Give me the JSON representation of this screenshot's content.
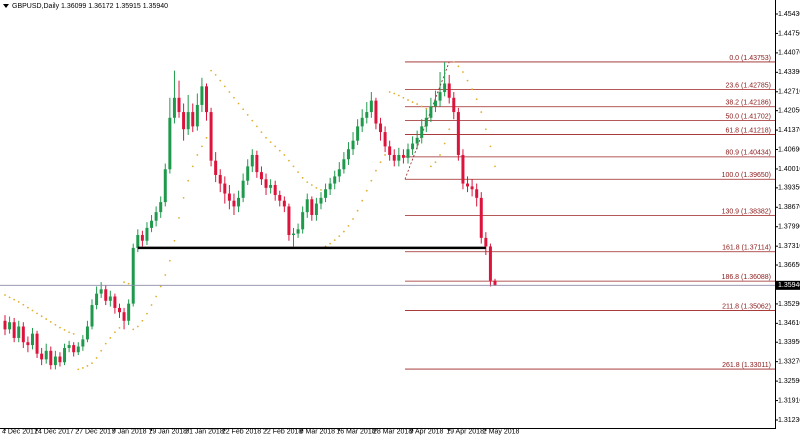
{
  "chart_data": {
    "type": "candlestick",
    "header": "GBPUSD,Daily  1.36099 1.36172 1.35915 1.35940",
    "up_color": "#1f9a4c",
    "down_color": "#dc143c",
    "sar_color": "#e0b030",
    "ylim": [
      1.3095,
      1.4592
    ],
    "yticks": [
      {
        "value": 1.4543,
        "label": "1.45430"
      },
      {
        "value": 1.4475,
        "label": "1.44750"
      },
      {
        "value": 1.4407,
        "label": "1.44070"
      },
      {
        "value": 1.4339,
        "label": "1.43390"
      },
      {
        "value": 1.4271,
        "label": "1.42710"
      },
      {
        "value": 1.4205,
        "label": "1.42050"
      },
      {
        "value": 1.4137,
        "label": "1.41370"
      },
      {
        "value": 1.4069,
        "label": "1.40690"
      },
      {
        "value": 1.4001,
        "label": "1.40010"
      },
      {
        "value": 1.3935,
        "label": "1.39350"
      },
      {
        "value": 1.3867,
        "label": "1.38670"
      },
      {
        "value": 1.3799,
        "label": "1.37990"
      },
      {
        "value": 1.3731,
        "label": "1.37310"
      },
      {
        "value": 1.3665,
        "label": "1.36650"
      },
      {
        "value": 1.3529,
        "label": "1.35290"
      },
      {
        "value": 1.3461,
        "label": "1.34610"
      },
      {
        "value": 1.3395,
        "label": "1.33950"
      },
      {
        "value": 1.3327,
        "label": "1.33270"
      },
      {
        "value": 1.3259,
        "label": "1.32590"
      },
      {
        "value": 1.3191,
        "label": "1.31910"
      },
      {
        "value": 1.3123,
        "label": "1.31230"
      }
    ],
    "categories": [
      "4 Dec 2017",
      null,
      null,
      null,
      null,
      null,
      null,
      "14 Dec 2017",
      null,
      null,
      null,
      null,
      null,
      null,
      null,
      null,
      "27 Dec 2017",
      null,
      null,
      null,
      null,
      null,
      null,
      null,
      "9 Jan 2018",
      null,
      null,
      null,
      null,
      null,
      null,
      null,
      "19 Jan 2018",
      null,
      null,
      null,
      null,
      null,
      null,
      null,
      "31 Jan 2018",
      null,
      null,
      null,
      null,
      null,
      null,
      null,
      "12 Feb 2018",
      null,
      null,
      null,
      null,
      null,
      null,
      null,
      null,
      "22 Feb 2018",
      null,
      null,
      null,
      null,
      null,
      null,
      null,
      "6 Mar 2018",
      null,
      null,
      null,
      null,
      null,
      null,
      null,
      "16 Mar 2018",
      null,
      null,
      null,
      null,
      null,
      null,
      null,
      "28 Mar 2018",
      null,
      null,
      null,
      null,
      null,
      null,
      null,
      "9 Apr 2018",
      null,
      null,
      null,
      null,
      null,
      null,
      null,
      "19 Apr 2018",
      null,
      null,
      null,
      null,
      null,
      null,
      null,
      "1 May 2018",
      null,
      null
    ],
    "open": [
      1.347,
      1.344,
      1.3465,
      1.341,
      1.345,
      1.3395,
      1.3385,
      1.3425,
      1.3355,
      1.3335,
      1.3365,
      1.3315,
      1.3345,
      1.3325,
      1.3375,
      1.3385,
      1.336,
      1.338,
      1.3405,
      1.345,
      1.3525,
      1.3565,
      1.358,
      1.354,
      1.3555,
      1.3515,
      1.35,
      1.347,
      1.353,
      1.3725,
      1.377,
      1.375,
      1.3795,
      1.382,
      1.385,
      1.3885,
      1.4,
      1.418,
      1.425,
      1.42,
      1.414,
      1.42,
      1.415,
      1.4225,
      1.429,
      1.42,
      1.403,
      1.398,
      1.395,
      1.3915,
      1.389,
      1.387,
      1.39,
      1.396,
      1.401,
      1.405,
      1.399,
      1.3965,
      1.3935,
      1.3945,
      1.391,
      1.389,
      1.387,
      1.377,
      1.3775,
      1.379,
      1.385,
      1.3895,
      1.384,
      1.388,
      1.39,
      1.393,
      1.395,
      1.3975,
      1.4,
      1.4035,
      1.407,
      1.41,
      1.415,
      1.418,
      1.42,
      1.424,
      1.416,
      1.413,
      1.408,
      1.405,
      1.403,
      1.405,
      1.404,
      1.407,
      1.409,
      1.411,
      1.415,
      1.418,
      1.422,
      1.424,
      1.427,
      1.43,
      1.425,
      1.42,
      1.405,
      1.395,
      1.394,
      1.393,
      1.39,
      1.376,
      1.373,
      1.36099
    ],
    "high": [
      1.349,
      1.3485,
      1.348,
      1.347,
      1.3465,
      1.3415,
      1.3445,
      1.3435,
      1.3375,
      1.339,
      1.338,
      1.3365,
      1.336,
      1.339,
      1.34,
      1.3395,
      1.3395,
      1.342,
      1.347,
      1.3545,
      1.359,
      1.3605,
      1.3595,
      1.3575,
      1.3565,
      1.353,
      1.3515,
      1.3545,
      1.374,
      1.379,
      1.3785,
      1.3815,
      1.384,
      1.387,
      1.3905,
      1.402,
      1.425,
      1.4345,
      1.431,
      1.423,
      1.426,
      1.423,
      1.4265,
      1.432,
      1.43,
      1.4215,
      1.406,
      1.4,
      1.3975,
      1.3945,
      1.3915,
      1.3925,
      1.3985,
      1.4035,
      1.407,
      1.4065,
      1.401,
      1.3985,
      1.3965,
      1.396,
      1.3925,
      1.3905,
      1.388,
      1.3795,
      1.381,
      1.387,
      1.3915,
      1.3905,
      1.39,
      1.392,
      1.395,
      1.397,
      1.3995,
      1.4025,
      1.406,
      1.4095,
      1.413,
      1.4175,
      1.421,
      1.4235,
      1.427,
      1.425,
      1.418,
      1.415,
      1.41,
      1.407,
      1.4075,
      1.407,
      1.409,
      1.4115,
      1.4135,
      1.4175,
      1.421,
      1.425,
      1.4275,
      1.434,
      1.4375,
      1.433,
      1.427,
      1.4215,
      1.407,
      1.3975,
      1.3965,
      1.395,
      1.392,
      1.378,
      1.374,
      1.36172
    ],
    "low": [
      1.342,
      1.3425,
      1.3395,
      1.3395,
      1.3375,
      1.336,
      1.337,
      1.334,
      1.3315,
      1.332,
      1.33,
      1.33,
      1.331,
      1.3315,
      1.336,
      1.3345,
      1.335,
      1.3365,
      1.3395,
      1.344,
      1.351,
      1.355,
      1.3525,
      1.352,
      1.3495,
      1.348,
      1.344,
      1.3455,
      1.352,
      1.371,
      1.373,
      1.3735,
      1.378,
      1.38,
      1.383,
      1.387,
      1.3985,
      1.416,
      1.418,
      1.41,
      1.412,
      1.413,
      1.4135,
      1.42,
      1.417,
      1.401,
      1.3955,
      1.392,
      1.388,
      1.386,
      1.384,
      1.385,
      1.3885,
      1.3945,
      1.399,
      1.397,
      1.3945,
      1.391,
      1.3915,
      1.389,
      1.387,
      1.385,
      1.375,
      1.373,
      1.376,
      1.3775,
      1.383,
      1.382,
      1.382,
      1.386,
      1.3885,
      1.391,
      1.393,
      1.3955,
      1.3985,
      1.4015,
      1.405,
      1.4085,
      1.413,
      1.416,
      1.418,
      1.414,
      1.41,
      1.406,
      1.403,
      1.401,
      1.401,
      1.402,
      1.402,
      1.405,
      1.407,
      1.409,
      1.413,
      1.4165,
      1.42,
      1.422,
      1.4255,
      1.423,
      1.4175,
      1.403,
      1.393,
      1.392,
      1.3905,
      1.387,
      1.374,
      1.37,
      1.359,
      1.35915
    ],
    "close": [
      1.344,
      1.3465,
      1.341,
      1.345,
      1.3395,
      1.3385,
      1.3425,
      1.3355,
      1.3335,
      1.3365,
      1.3315,
      1.3345,
      1.3325,
      1.3375,
      1.3385,
      1.336,
      1.338,
      1.3405,
      1.345,
      1.3525,
      1.3565,
      1.358,
      1.354,
      1.3555,
      1.3515,
      1.35,
      1.347,
      1.353,
      1.3725,
      1.377,
      1.375,
      1.3795,
      1.382,
      1.385,
      1.3885,
      1.4,
      1.418,
      1.425,
      1.42,
      1.414,
      1.42,
      1.415,
      1.4225,
      1.429,
      1.42,
      1.403,
      1.398,
      1.395,
      1.3915,
      1.389,
      1.387,
      1.39,
      1.396,
      1.401,
      1.405,
      1.399,
      1.3965,
      1.3935,
      1.3945,
      1.391,
      1.389,
      1.387,
      1.377,
      1.3775,
      1.379,
      1.385,
      1.3895,
      1.384,
      1.388,
      1.39,
      1.393,
      1.395,
      1.3975,
      1.4,
      1.4035,
      1.407,
      1.41,
      1.415,
      1.418,
      1.42,
      1.424,
      1.416,
      1.413,
      1.408,
      1.405,
      1.403,
      1.405,
      1.404,
      1.407,
      1.409,
      1.411,
      1.415,
      1.418,
      1.422,
      1.424,
      1.427,
      1.43,
      1.425,
      1.42,
      1.405,
      1.395,
      1.394,
      1.393,
      1.39,
      1.376,
      1.373,
      1.361,
      1.3594
    ],
    "sar": [
      1.356,
      1.3552,
      1.3544,
      1.3536,
      1.3526,
      1.3516,
      1.3506,
      1.3496,
      1.3486,
      1.3476,
      1.3466,
      1.3456,
      1.3446,
      1.3438,
      1.343,
      1.3424,
      1.33,
      1.3305,
      1.3312,
      1.3322,
      1.334,
      1.3365,
      1.339,
      1.341,
      1.343,
      1.3445,
      1.3605,
      1.36,
      1.344,
      1.345,
      1.347,
      1.3495,
      1.3525,
      1.3555,
      1.359,
      1.363,
      1.368,
      1.375,
      1.383,
      1.39,
      1.396,
      1.401,
      1.405,
      1.408,
      1.411,
      1.4345,
      1.433,
      1.431,
      1.429,
      1.427,
      1.425,
      1.423,
      1.421,
      1.419,
      1.417,
      1.415,
      1.413,
      1.411,
      1.4095,
      1.408,
      1.4065,
      1.405,
      1.403,
      1.401,
      1.399,
      1.397,
      1.3955,
      1.3945,
      1.3935,
      1.3928,
      1.373,
      1.374,
      1.3752,
      1.3766,
      1.3782,
      1.3802,
      1.3826,
      1.3855,
      1.389,
      1.3925,
      1.396,
      1.3995,
      1.4025,
      1.405,
      1.427,
      1.4265,
      1.4258,
      1.425,
      1.4242,
      1.4235,
      1.4228,
      1.422,
      1.4212,
      1.401,
      1.4025,
      1.405,
      1.409,
      1.414,
      1.4375,
      1.436,
      1.434,
      1.431,
      1.428,
      1.4245,
      1.42,
      1.414,
      1.408,
      1.401
    ],
    "fibonacci": {
      "color": "#9b2020",
      "levels": [
        {
          "value": 1.43753,
          "label": "0.0 (1.43753)"
        },
        {
          "value": 1.42785,
          "label": "23.6 (1.42785)"
        },
        {
          "value": 1.42186,
          "label": "38.2 (1.42186)"
        },
        {
          "value": 1.41702,
          "label": "50.0 (1.41702)"
        },
        {
          "value": 1.41218,
          "label": "61.8 (1.41218)"
        },
        {
          "value": 1.40434,
          "label": "80.9 (1.40434)"
        },
        {
          "value": 1.3965,
          "label": "100.0 (1.39650)"
        },
        {
          "value": 1.38382,
          "label": "130.9 (1.38382)"
        },
        {
          "value": 1.37114,
          "label": "161.8 (1.37114)"
        },
        {
          "value": 1.36088,
          "label": "186.8 (1.36088)"
        },
        {
          "value": 1.35062,
          "label": "211.8 (1.35062)"
        },
        {
          "value": 1.33011,
          "label": "261.8 (1.33011)"
        }
      ]
    },
    "support_level": 1.3725,
    "support_color": "#000000",
    "current_price": {
      "value": 1.3594,
      "label": "1.35940"
    }
  }
}
